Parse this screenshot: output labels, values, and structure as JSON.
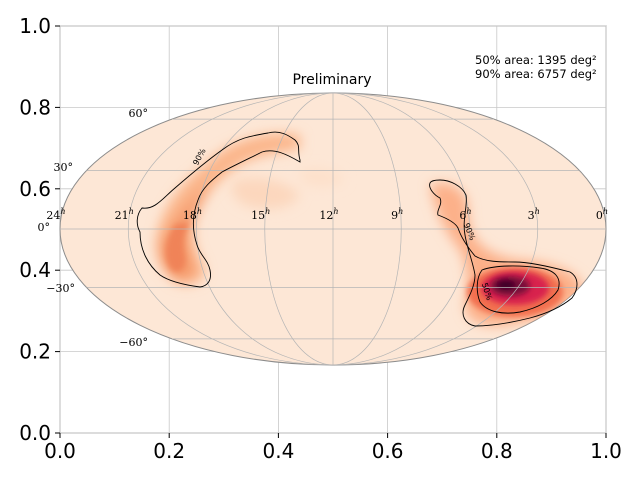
{
  "chart_data": {
    "type": "heatmap",
    "title": "Preliminary",
    "xlabel": "",
    "ylabel": "",
    "xlim": [
      0.0,
      1.0
    ],
    "ylim": [
      0.0,
      1.0
    ],
    "x_ticks": [
      "0.0",
      "0.2",
      "0.4",
      "0.6",
      "0.8",
      "1.0"
    ],
    "y_ticks": [
      "0.0",
      "0.2",
      "0.4",
      "0.6",
      "0.8",
      "1.0"
    ],
    "grid": true,
    "colormap": [
      "#fde7d6",
      "#fbb58a",
      "#f2704f",
      "#d8204d",
      "#7a0a3a",
      "#3a0525"
    ]
  },
  "sky": {
    "title": "Preliminary",
    "area_50": "50% area: 1395 deg²",
    "area_90": "90% area: 6757 deg²",
    "ra_labels": [
      "24",
      "21",
      "18",
      "15",
      "12",
      "9",
      "6",
      "3",
      "0"
    ],
    "ra_unit": "h",
    "dec_labels": [
      "60°",
      "30°",
      "0°",
      "−30°",
      "−60°"
    ],
    "contour_labels": [
      "90%",
      "90%",
      "50%"
    ]
  }
}
